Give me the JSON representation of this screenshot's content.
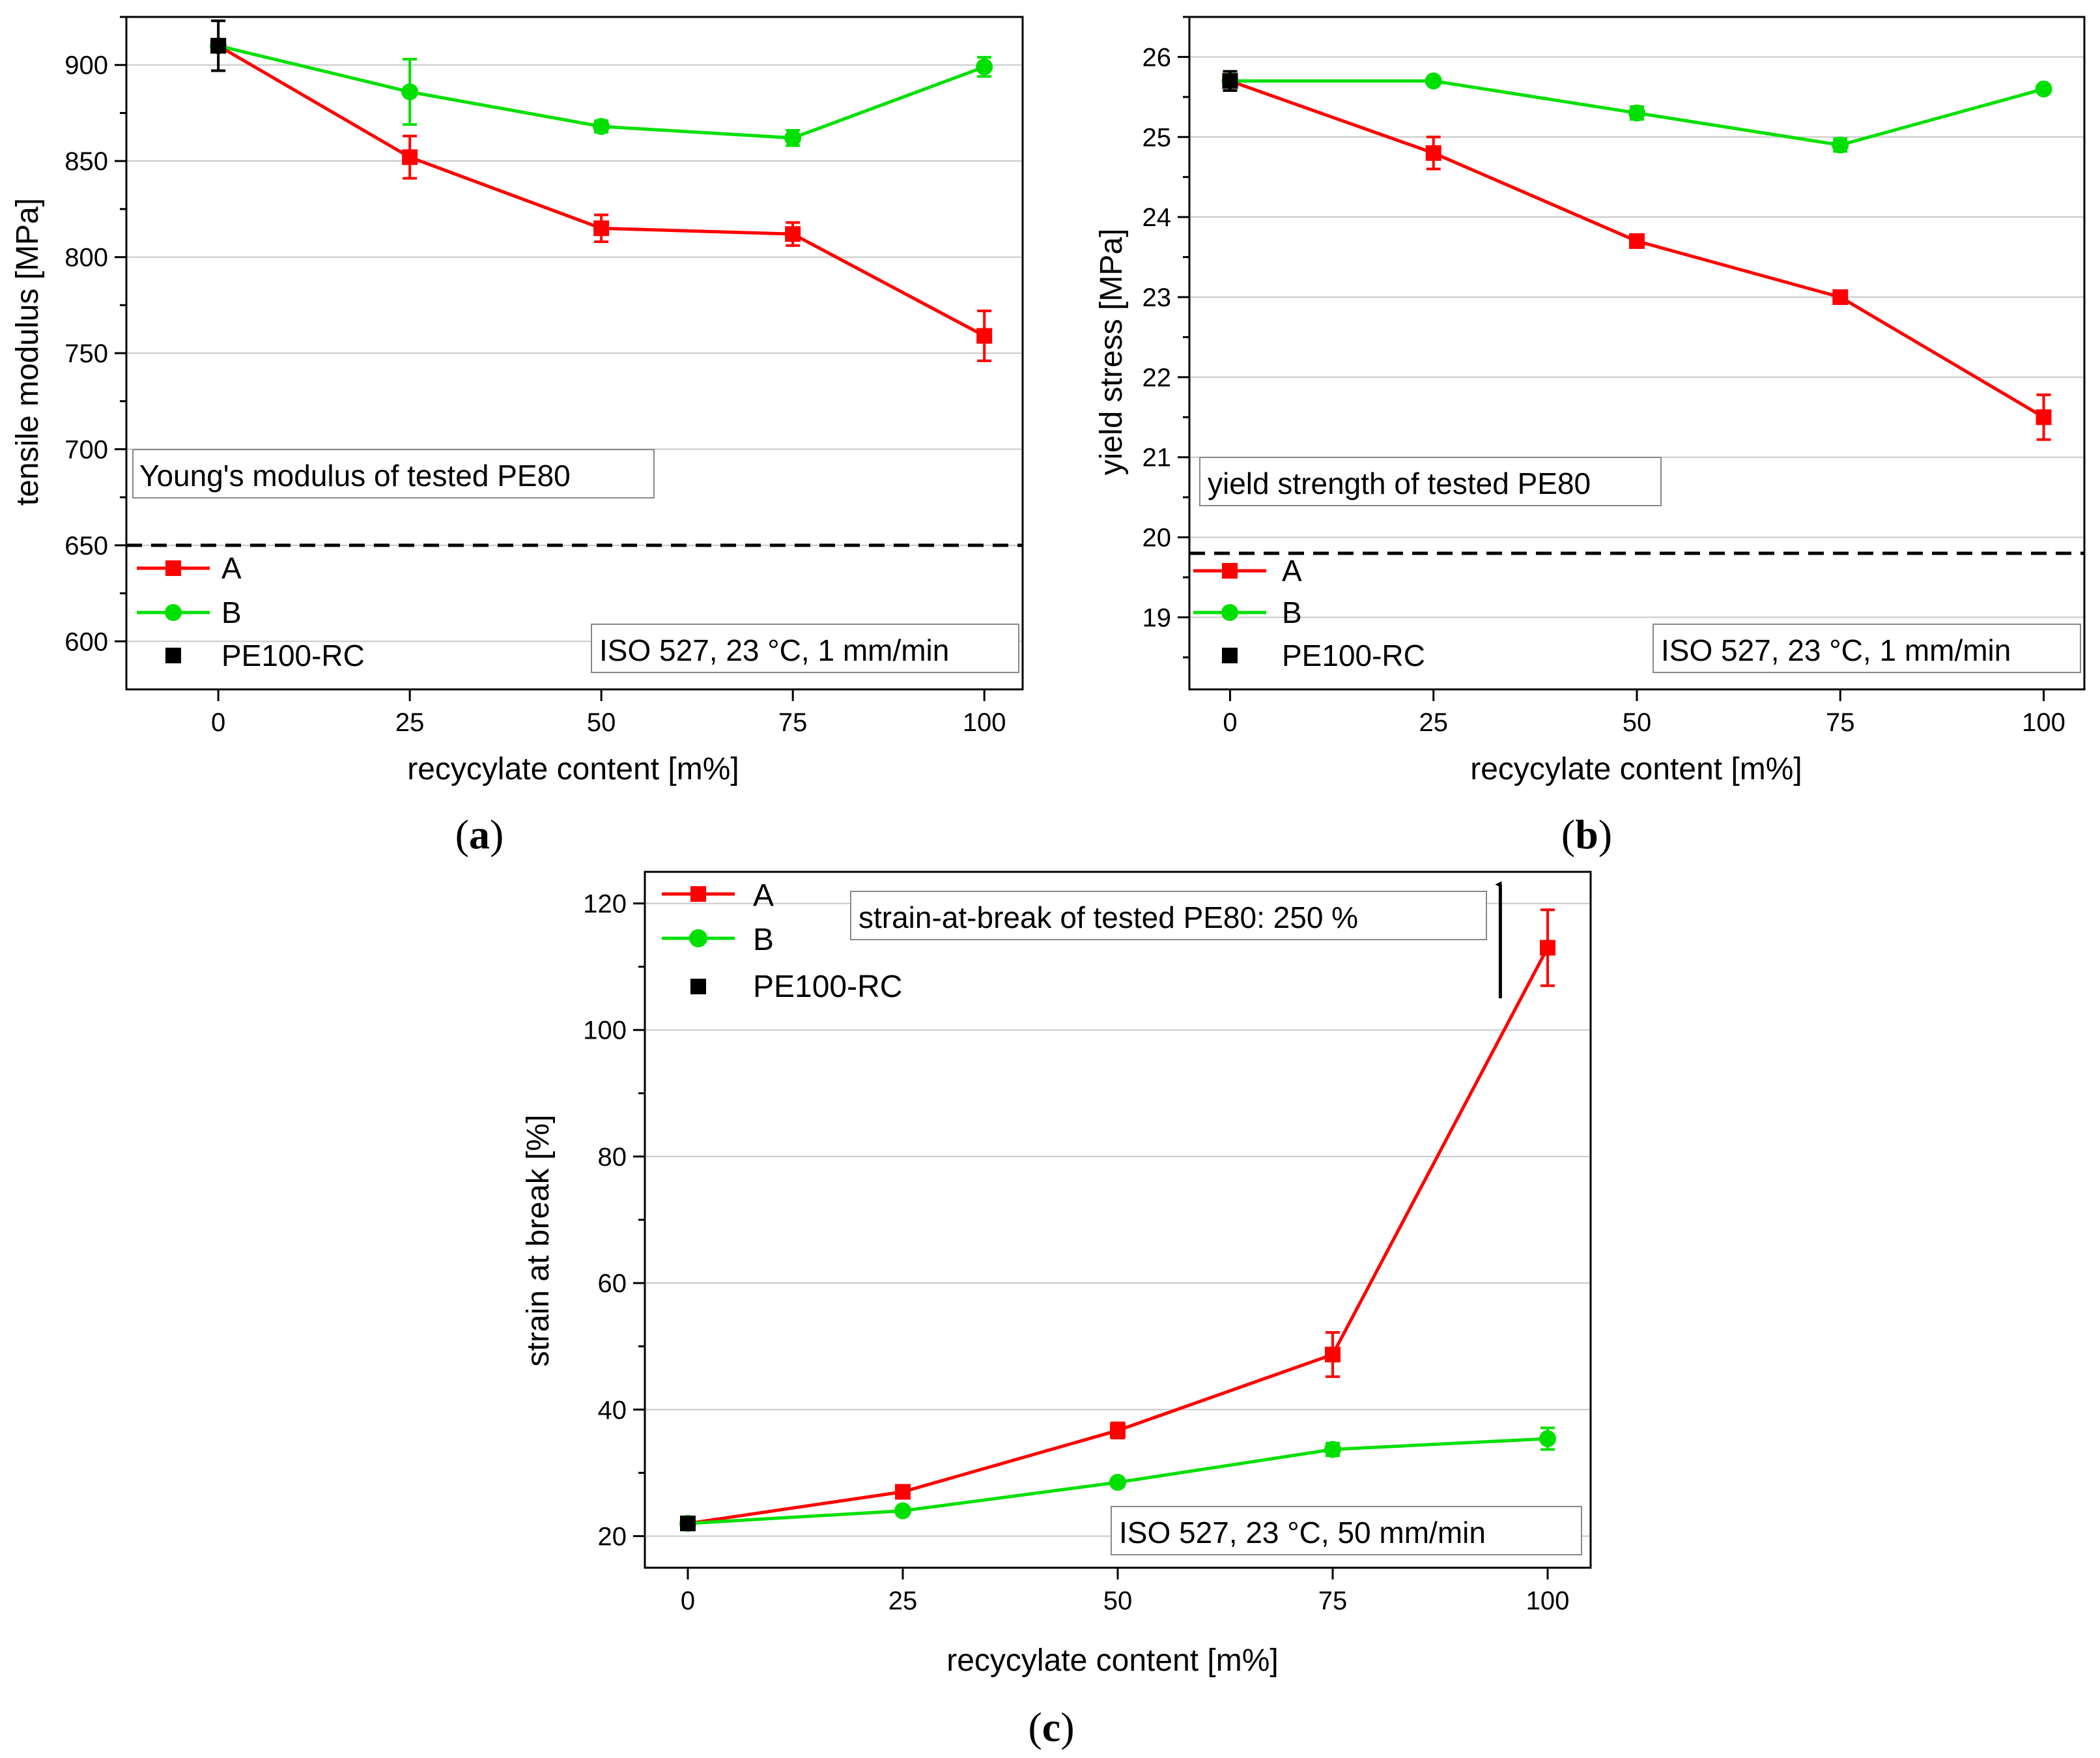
{
  "colors": {
    "A": "#ff0000",
    "B": "#00e000",
    "PE100RC": "#000000",
    "axis": "#000000",
    "grid": "#c8c8c8",
    "reference": "#000000"
  },
  "chart_data": [
    {
      "id": "a",
      "type": "line",
      "subcaption": "a",
      "xlabel": "recycylate content [m%]",
      "ylabel": "tensile modulus [MPa]",
      "xlim": [
        -12,
        105
      ],
      "ylim": [
        575,
        925
      ],
      "xticks": [
        0,
        25,
        50,
        75,
        100
      ],
      "yticks": [
        600,
        650,
        700,
        750,
        800,
        850,
        900
      ],
      "minor_yticks": [
        625,
        675,
        725,
        775,
        825,
        875,
        925
      ],
      "grid": true,
      "reference_line": 650,
      "annotation": "Young's modulus of tested PE80",
      "condition": "ISO 527, 23 °C, 1 mm/min",
      "legend": [
        "A",
        "B",
        "PE100-RC"
      ],
      "series": [
        {
          "name": "A",
          "marker": "square",
          "x": [
            0,
            25,
            50,
            75,
            100
          ],
          "y": [
            910,
            852,
            815,
            812,
            759
          ],
          "err": [
            0,
            11,
            7,
            6,
            13
          ]
        },
        {
          "name": "B",
          "marker": "circle",
          "x": [
            0,
            25,
            50,
            75,
            100
          ],
          "y": [
            910,
            886,
            868,
            862,
            899
          ],
          "err": [
            0,
            17,
            3,
            4,
            5
          ]
        },
        {
          "name": "PE100-RC",
          "marker": "square",
          "x": [
            0
          ],
          "y": [
            910
          ],
          "err": [
            13
          ]
        }
      ]
    },
    {
      "id": "b",
      "type": "line",
      "subcaption": "b",
      "xlabel": "recycylate content [m%]",
      "ylabel": "yield stress [MPa]",
      "xlim": [
        -5,
        105
      ],
      "ylim": [
        18.1,
        26.5
      ],
      "xticks": [
        0,
        25,
        50,
        75,
        100
      ],
      "yticks": [
        19,
        20,
        21,
        22,
        23,
        24,
        25,
        26
      ],
      "minor_yticks": [
        18.5,
        19.5,
        20.5,
        21.5,
        22.5,
        23.5,
        24.5,
        25.5,
        26.5
      ],
      "grid": true,
      "reference_line": 19.8,
      "annotation": "yield strength of tested PE80",
      "condition": "ISO 527, 23 °C, 1 mm/min",
      "legend": [
        "A",
        "B",
        "PE100-RC"
      ],
      "series": [
        {
          "name": "A",
          "marker": "square",
          "x": [
            0,
            25,
            50,
            75,
            100
          ],
          "y": [
            25.7,
            24.8,
            23.7,
            23.0,
            21.5
          ],
          "err": [
            0,
            0.2,
            0.05,
            0.05,
            0.28
          ]
        },
        {
          "name": "B",
          "marker": "circle",
          "x": [
            0,
            25,
            50,
            75,
            100
          ],
          "y": [
            25.7,
            25.7,
            25.3,
            24.9,
            25.6
          ],
          "err": [
            0,
            0.03,
            0.08,
            0.08,
            0.03
          ]
        },
        {
          "name": "PE100-RC",
          "marker": "square",
          "x": [
            0
          ],
          "y": [
            25.7
          ],
          "err": [
            0.12
          ]
        }
      ]
    },
    {
      "id": "c",
      "type": "line",
      "subcaption": "c",
      "xlabel": "recycylate content [m%]",
      "ylabel": "strain at break [%]",
      "xlim": [
        -5,
        105
      ],
      "ylim": [
        15,
        125
      ],
      "xticks": [
        0,
        25,
        50,
        75,
        100
      ],
      "yticks": [
        20,
        40,
        60,
        80,
        100,
        120
      ],
      "minor_yticks": [
        30,
        50,
        70,
        90,
        110
      ],
      "grid": true,
      "annotation": "strain-at-break of tested PE80: 250 %",
      "condition": "ISO 527, 23 °C, 50 mm/min",
      "arrow_x": 94.5,
      "arrow_y": [
        105,
        123
      ],
      "legend": [
        "A",
        "B",
        "PE100-RC"
      ],
      "series": [
        {
          "name": "A",
          "marker": "square",
          "x": [
            0,
            25,
            50,
            75,
            100
          ],
          "y": [
            22,
            27,
            36.7,
            48.7,
            113
          ],
          "err": [
            0,
            0.6,
            1.2,
            3.5,
            6
          ]
        },
        {
          "name": "B",
          "marker": "circle",
          "x": [
            0,
            25,
            50,
            75,
            100
          ],
          "y": [
            22,
            24,
            28.5,
            33.7,
            35.4
          ],
          "err": [
            0,
            0.5,
            0.6,
            1.0,
            1.7
          ]
        },
        {
          "name": "PE100-RC",
          "marker": "square",
          "x": [
            0
          ],
          "y": [
            22
          ],
          "err": [
            0.5
          ]
        }
      ]
    }
  ]
}
